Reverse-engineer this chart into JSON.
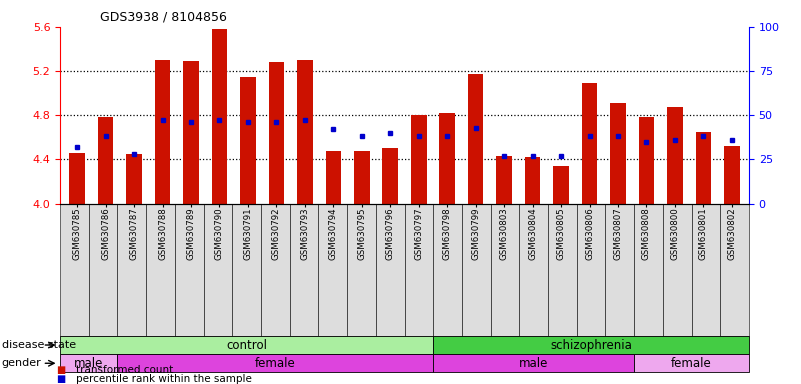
{
  "title": "GDS3938 / 8104856",
  "samples": [
    "GSM630785",
    "GSM630786",
    "GSM630787",
    "GSM630788",
    "GSM630789",
    "GSM630790",
    "GSM630791",
    "GSM630792",
    "GSM630793",
    "GSM630794",
    "GSM630795",
    "GSM630796",
    "GSM630797",
    "GSM630798",
    "GSM630799",
    "GSM630803",
    "GSM630804",
    "GSM630805",
    "GSM630806",
    "GSM630807",
    "GSM630808",
    "GSM630800",
    "GSM630801",
    "GSM630802"
  ],
  "red_values": [
    4.46,
    4.78,
    4.45,
    5.3,
    5.29,
    5.58,
    5.15,
    5.28,
    5.3,
    4.48,
    4.48,
    4.5,
    4.8,
    4.82,
    5.17,
    4.43,
    4.42,
    4.34,
    5.09,
    4.91,
    4.78,
    4.87,
    4.65,
    4.52
  ],
  "blue_values": [
    32,
    38,
    28,
    47,
    46,
    47,
    46,
    46,
    47,
    42,
    38,
    40,
    38,
    38,
    43,
    27,
    27,
    27,
    38,
    38,
    35,
    36,
    38,
    36
  ],
  "ylim_left": [
    4.0,
    5.6
  ],
  "ylim_right": [
    0,
    100
  ],
  "yticks_left": [
    4.0,
    4.4,
    4.8,
    5.2,
    5.6
  ],
  "yticks_right": [
    0,
    25,
    50,
    75,
    100
  ],
  "bar_color": "#CC1100",
  "dot_color": "#0000CC",
  "bar_width": 0.55,
  "disease_groups": [
    {
      "label": "control",
      "start": 0,
      "end": 13,
      "color": "#AAEEA0"
    },
    {
      "label": "schizophrenia",
      "start": 13,
      "end": 24,
      "color": "#44CC44"
    }
  ],
  "gender_groups": [
    {
      "label": "male",
      "start": 0,
      "end": 2,
      "color": "#EEA8EE"
    },
    {
      "label": "female",
      "start": 2,
      "end": 13,
      "color": "#DD44DD"
    },
    {
      "label": "male",
      "start": 13,
      "end": 20,
      "color": "#DD44DD"
    },
    {
      "label": "female",
      "start": 20,
      "end": 24,
      "color": "#EEA8EE"
    }
  ],
  "disease_label": "disease state",
  "gender_label": "gender",
  "legend_red": "transformed count",
  "legend_blue": "percentile rank within the sample"
}
